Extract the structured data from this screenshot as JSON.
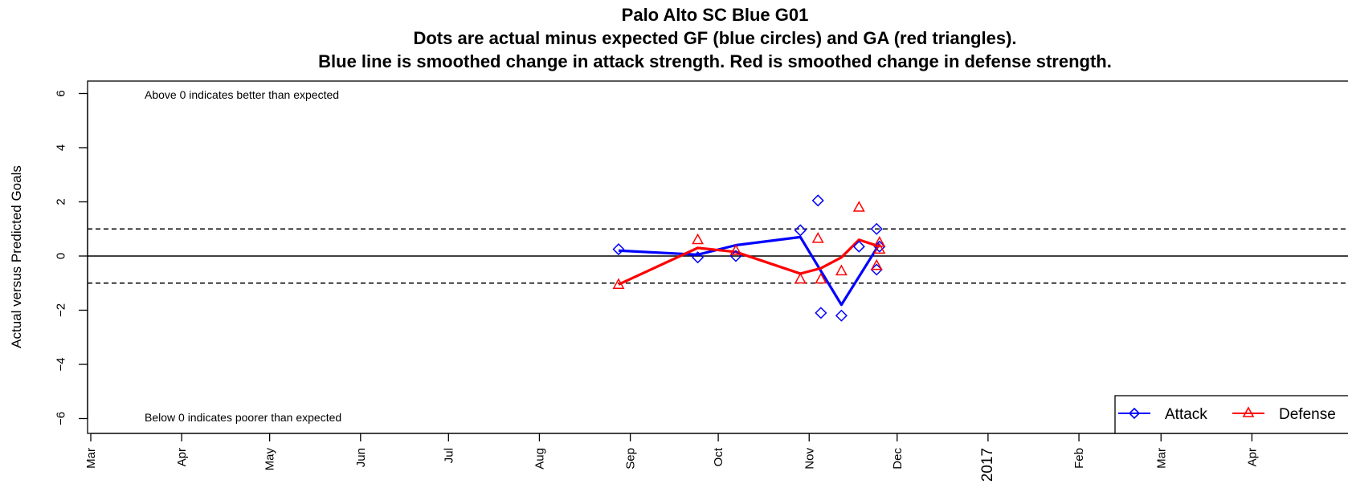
{
  "chart_data": {
    "type": "line",
    "title_lines": [
      "Palo Alto SC Blue G01",
      "Dots are actual minus expected GF (blue circles) and GA (red triangles).",
      "Blue line is smoothed change in attack strength. Red is smoothed change in defense strength."
    ],
    "ylabel": "Actual versus Predicted Goals",
    "xlabel": "",
    "ylim": [
      -6,
      6
    ],
    "y_ticks": [
      -6,
      -4,
      -2,
      0,
      2,
      4,
      6
    ],
    "y_tick_labels": [
      "−6",
      "−4",
      "−2",
      "0",
      "2",
      "4",
      "6"
    ],
    "x_ticks": [
      {
        "date": "2016-03-01",
        "label": "Mar"
      },
      {
        "date": "2016-04-01",
        "label": "Apr"
      },
      {
        "date": "2016-05-01",
        "label": "May"
      },
      {
        "date": "2016-06-01",
        "label": "Jun"
      },
      {
        "date": "2016-07-01",
        "label": "Jul"
      },
      {
        "date": "2016-08-01",
        "label": "Aug"
      },
      {
        "date": "2016-09-01",
        "label": "Sep"
      },
      {
        "date": "2016-10-01",
        "label": "Oct"
      },
      {
        "date": "2016-11-01",
        "label": "Nov"
      },
      {
        "date": "2016-12-01",
        "label": "Dec"
      },
      {
        "date": "2017-01-01",
        "label": "2017"
      },
      {
        "date": "2017-02-01",
        "label": "Feb"
      },
      {
        "date": "2017-03-01",
        "label": "Mar"
      },
      {
        "date": "2017-04-01",
        "label": "Apr"
      }
    ],
    "reference_lines": [
      {
        "y": 0,
        "style": "solid"
      },
      {
        "y": 1,
        "style": "dashed"
      },
      {
        "y": -1,
        "style": "dashed"
      }
    ],
    "annotations": [
      {
        "text": "Above 0 indicates better than expected",
        "position": "top-left"
      },
      {
        "text": "Below 0 indicates poorer than expected",
        "position": "bottom-left"
      }
    ],
    "legend": {
      "position": "bottom-right",
      "entries": [
        "Attack",
        "Defense"
      ]
    },
    "colors": {
      "attack": "#0000ff",
      "defense": "#ff0000"
    },
    "series": [
      {
        "name": "Attack",
        "kind": "points",
        "marker": "diamond",
        "points": [
          {
            "x": "2016-08-28",
            "y": 0.25
          },
          {
            "x": "2016-09-24",
            "y": -0.05
          },
          {
            "x": "2016-10-07",
            "y": 0.0
          },
          {
            "x": "2016-10-29",
            "y": 0.95
          },
          {
            "x": "2016-11-04",
            "y": 2.05
          },
          {
            "x": "2016-11-05",
            "y": -2.1
          },
          {
            "x": "2016-11-12",
            "y": -2.2
          },
          {
            "x": "2016-11-18",
            "y": 0.35
          },
          {
            "x": "2016-11-24",
            "y": 1.0
          },
          {
            "x": "2016-11-24",
            "y": -0.5
          },
          {
            "x": "2016-11-25",
            "y": 0.35
          }
        ]
      },
      {
        "name": "Defense",
        "kind": "points",
        "marker": "triangle",
        "points": [
          {
            "x": "2016-08-28",
            "y": -1.05
          },
          {
            "x": "2016-09-24",
            "y": 0.6
          },
          {
            "x": "2016-10-07",
            "y": 0.2
          },
          {
            "x": "2016-10-29",
            "y": -0.85
          },
          {
            "x": "2016-11-04",
            "y": 0.65
          },
          {
            "x": "2016-11-05",
            "y": -0.85
          },
          {
            "x": "2016-11-12",
            "y": -0.55
          },
          {
            "x": "2016-11-18",
            "y": 1.8
          },
          {
            "x": "2016-11-24",
            "y": -0.35
          },
          {
            "x": "2016-11-25",
            "y": 0.25
          },
          {
            "x": "2016-11-25",
            "y": 0.5
          }
        ]
      },
      {
        "name": "Attack",
        "kind": "line",
        "points": [
          {
            "x": "2016-08-28",
            "y": 0.2
          },
          {
            "x": "2016-09-24",
            "y": 0.05
          },
          {
            "x": "2016-10-07",
            "y": 0.4
          },
          {
            "x": "2016-10-29",
            "y": 0.7
          },
          {
            "x": "2016-11-12",
            "y": -1.8
          },
          {
            "x": "2016-11-25",
            "y": 0.45
          }
        ]
      },
      {
        "name": "Defense",
        "kind": "line",
        "points": [
          {
            "x": "2016-08-28",
            "y": -1.05
          },
          {
            "x": "2016-09-24",
            "y": 0.3
          },
          {
            "x": "2016-10-07",
            "y": 0.15
          },
          {
            "x": "2016-10-29",
            "y": -0.65
          },
          {
            "x": "2016-11-05",
            "y": -0.45
          },
          {
            "x": "2016-11-12",
            "y": -0.05
          },
          {
            "x": "2016-11-18",
            "y": 0.6
          },
          {
            "x": "2016-11-25",
            "y": 0.35
          }
        ]
      }
    ]
  }
}
